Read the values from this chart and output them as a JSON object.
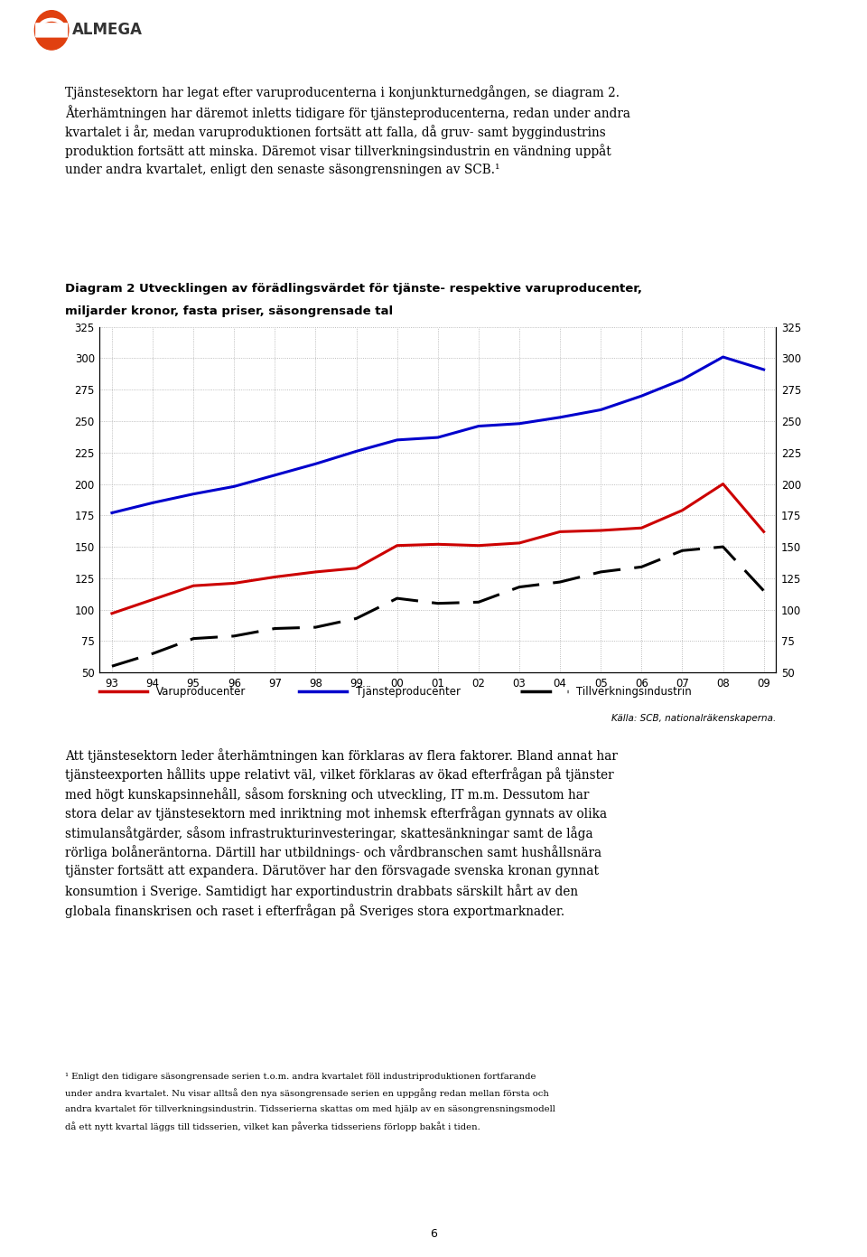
{
  "title_line1": "Diagram 2 Utvecklingen av förädlingsvärdet för tjänste- respektive varuproducenter,",
  "title_line2": "miljarder kronor, fasta priser, säsongrensade tal",
  "x_labels": [
    "93",
    "94",
    "95",
    "96",
    "97",
    "98",
    "99",
    "00",
    "01",
    "02",
    "03",
    "04",
    "05",
    "06",
    "07",
    "08",
    "09"
  ],
  "ylim": [
    50,
    325
  ],
  "yticks": [
    50,
    75,
    100,
    125,
    150,
    175,
    200,
    225,
    250,
    275,
    300,
    325
  ],
  "source_text": "Källa: SCB, nationalräkenskaperna.",
  "legend_varuproducenter": "Varuproducenter",
  "legend_tjansteproducenter": "Tjänsteproducenter",
  "legend_tillverkningsindustrin": "Tillverkningsindustrin",
  "varuproducenter": [
    97,
    108,
    119,
    121,
    126,
    130,
    133,
    151,
    152,
    151,
    153,
    162,
    163,
    165,
    179,
    200,
    162
  ],
  "tjansteproducenter": [
    177,
    185,
    192,
    198,
    207,
    216,
    226,
    235,
    237,
    246,
    248,
    253,
    259,
    270,
    283,
    301,
    291
  ],
  "tillverkningsindustrin": [
    55,
    65,
    77,
    79,
    85,
    86,
    93,
    109,
    105,
    106,
    118,
    122,
    130,
    134,
    147,
    150,
    115
  ],
  "varuproducenter_color": "#cc0000",
  "tjansteproducenter_color": "#0000cc",
  "tillverkningsindustrin_color": "#000000",
  "background_color": "#ffffff",
  "grid_color": "#aaaaaa",
  "text_color": "#000000",
  "body_text_top_lines": [
    "Tjänstesektorn har legat efter varuproducenterna i konjunkturnedgången, se diagram 2.",
    "Återhämtningen har däremot inletts tidigare för tjänsteproducenterna, redan under andra",
    "kvartalet i år, medan varuproduktionen fortsätt att falla, då gruv- samt byggindustrins",
    "produktion fortsätt att minska. Däremot visar tillverkningsindustrin en vändning uppåt",
    "under andra kvartalet, enligt den senaste säsongrensningen av SCB.¹"
  ],
  "body_text_bottom_lines": [
    "Att tjänstesektorn leder återhämtningen kan förklaras av flera faktorer. Bland annat har",
    "tjänsteexporten hållits uppe relativt väl, vilket förklaras av ökad efterfrågan på tjänster",
    "med högt kunskapsinnehåll, såsom forskning och utveckling, IT m.m. Dessutom har",
    "stora delar av tjänstesektorn med inriktning mot inhemsk efterfrågan gynnats av olika",
    "stimulansåtgärder, såsom infrastrukturinvesteringar, skattesänkningar samt de låga",
    "rörliga bolåneräntorna. Därtill har utbildnings- och vårdbranschen samt hushållsnära",
    "tjänster fortsätt att expandera. Därutöver har den försvagade svenska kronan gynnat",
    "konsumtion i Sverige. Samtidigt har exportindustrin drabbats särskilt hårt av den",
    "globala finanskrisen och raset i efterfrågan på Sveriges stora exportmarknader."
  ],
  "footnote_lines": [
    "¹ Enligt den tidigare säsongrensade serien t.o.m. andra kvartalet föll industriproduktionen fortfarande",
    "under andra kvartalet. Nu visar alltså den nya säsongrensade serien en uppgång redan mellan första och",
    "andra kvartalet för tillverkningsindustrin. Tidsserierna skattas om med hjälp av en säsongrensningsmodell",
    "då ett nytt kvartal läggs till tidsserien, vilket kan påverka tidsseriens förlopp bakåt i tiden."
  ],
  "page_number": "6",
  "logo_text": "ALMEGA"
}
